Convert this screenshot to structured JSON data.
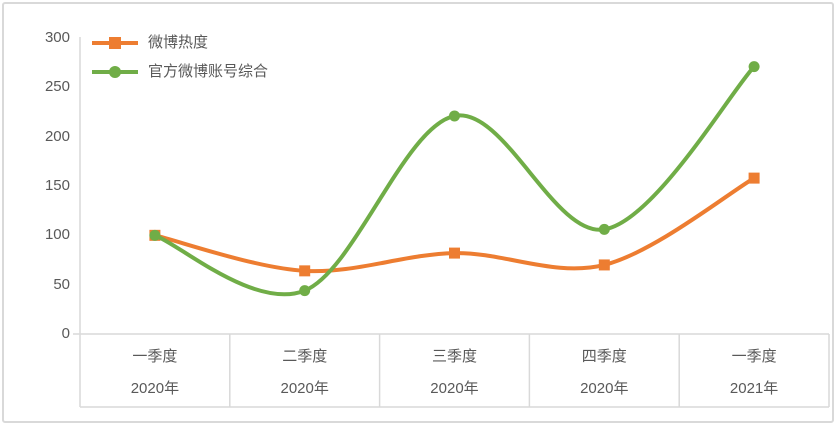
{
  "chart_data": {
    "type": "line",
    "smooth": true,
    "title": "",
    "legend_position": "top-left",
    "grid": false,
    "axis_color": "#D9D9D9",
    "label_color": "#595959",
    "background_color": "#FFFFFF",
    "categories": [
      {
        "quarter": "一季度",
        "year": "2020年"
      },
      {
        "quarter": "二季度",
        "year": "2020年"
      },
      {
        "quarter": "三季度",
        "year": "2020年"
      },
      {
        "quarter": "四季度",
        "year": "2020年"
      },
      {
        "quarter": "一季度",
        "year": "2021年"
      }
    ],
    "series": [
      {
        "name": "微博热度",
        "color": "#ED7D31",
        "marker": "square",
        "values": [
          100,
          64,
          82,
          70,
          158
        ]
      },
      {
        "name": "官方微博账号综合",
        "color": "#70AD47",
        "marker": "circle",
        "values": [
          100,
          44,
          221,
          106,
          271
        ]
      }
    ],
    "y_axis": {
      "min": 0,
      "max": 300,
      "step": 50,
      "ticks": [
        300,
        250,
        200,
        150,
        100,
        50,
        0
      ]
    }
  }
}
